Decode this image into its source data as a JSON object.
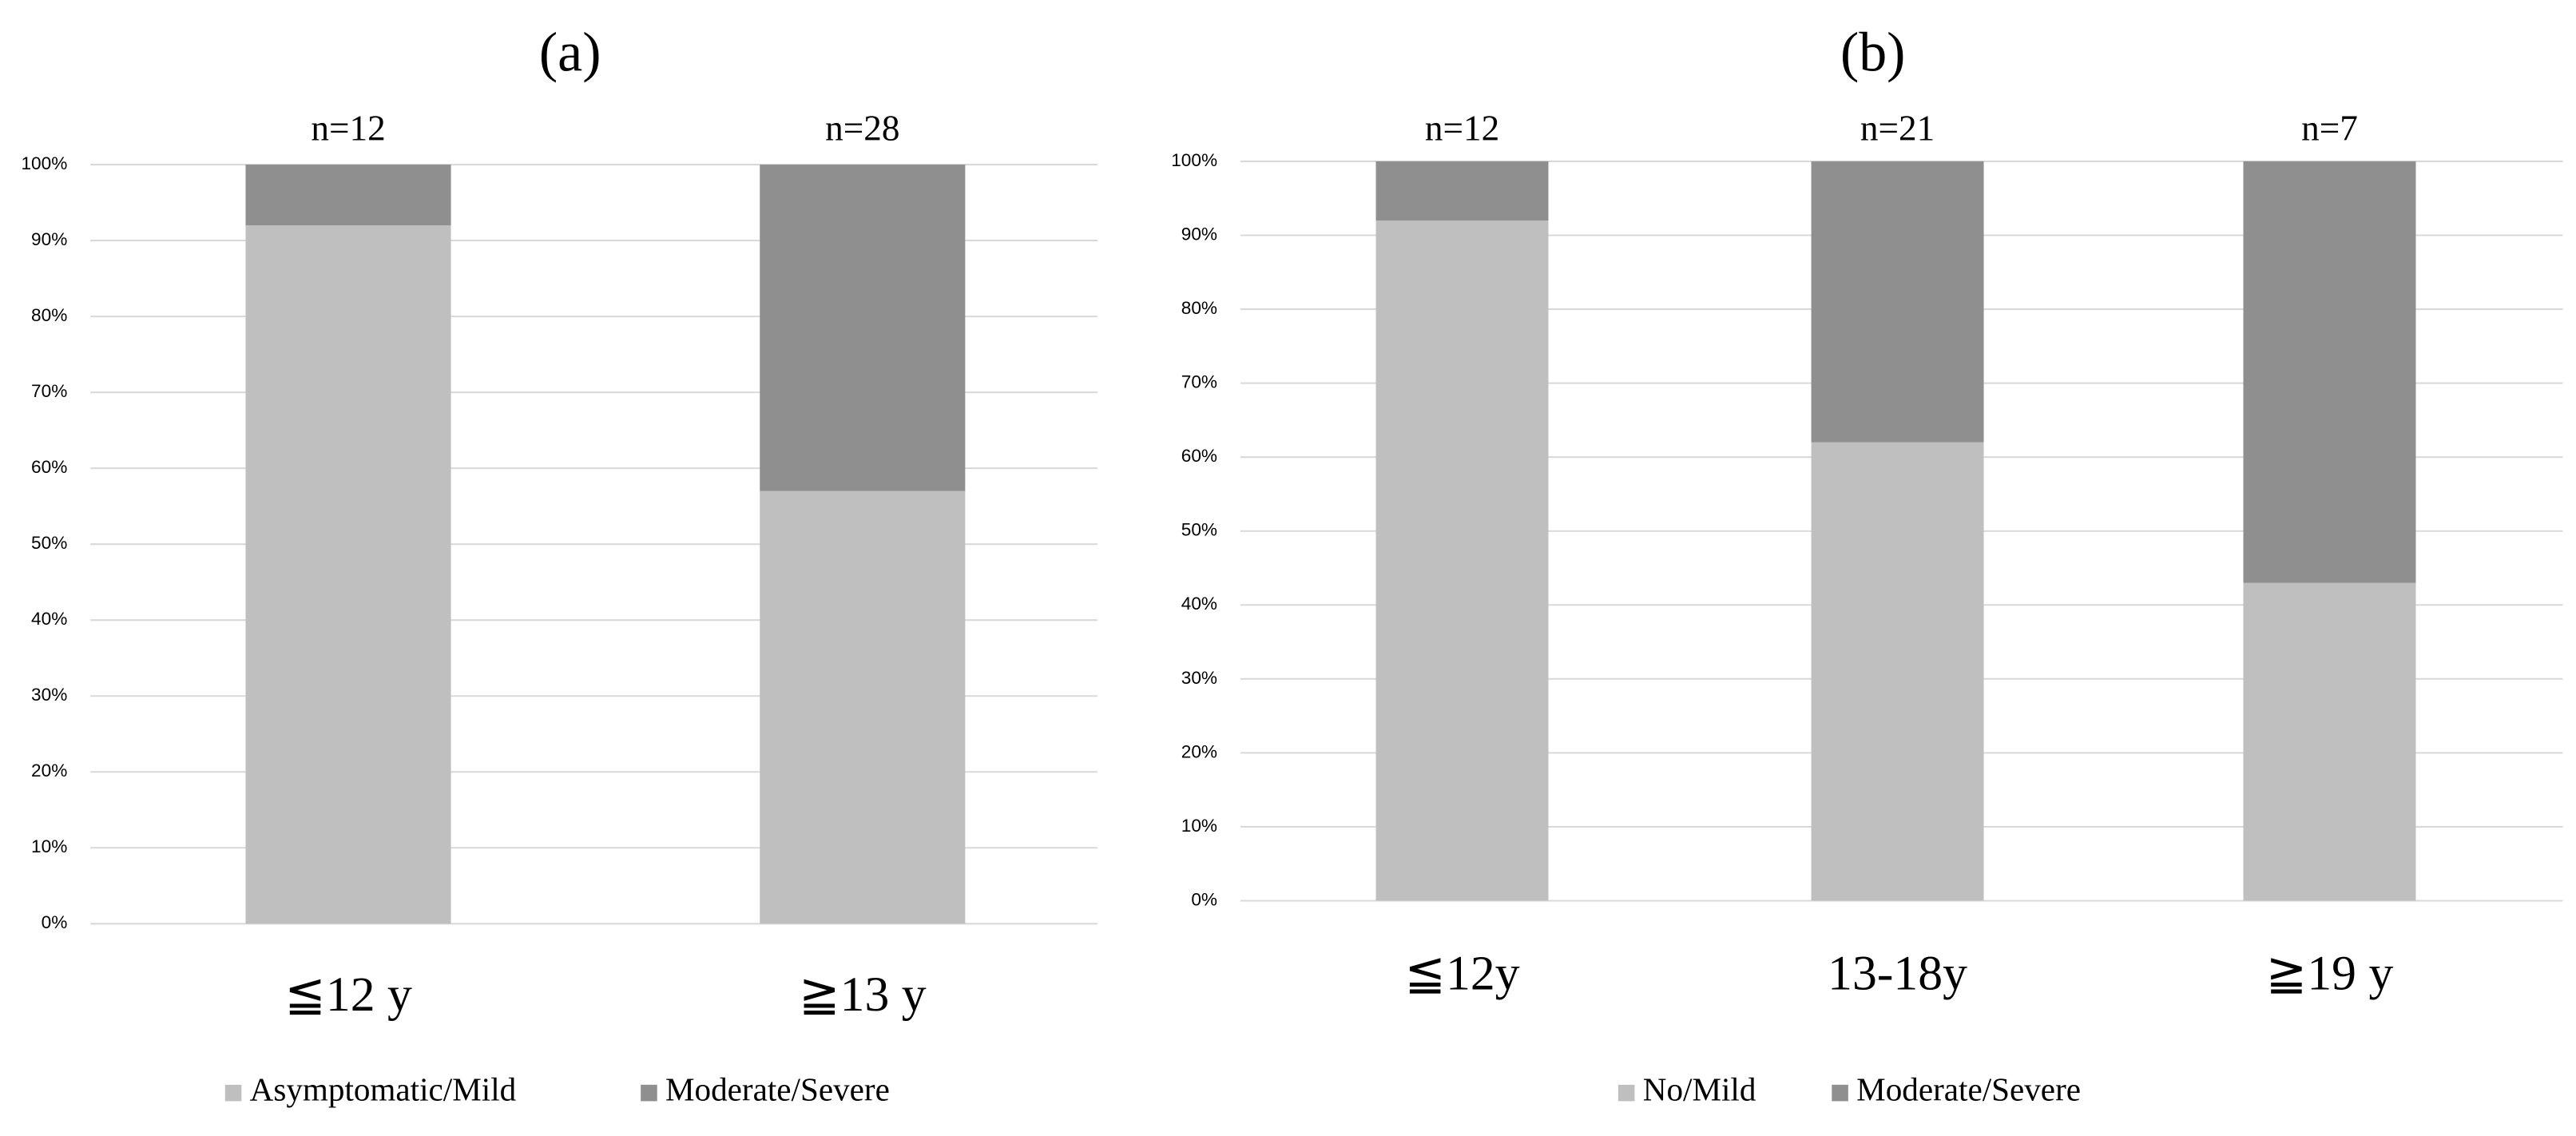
{
  "chart_data": [
    {
      "type": "stacked_bar",
      "title": "(a)",
      "categories": [
        "≦12 y",
        "≧13 y"
      ],
      "annotations": [
        "n=12",
        "n=28"
      ],
      "series": [
        {
          "name": "Asymptomatic/Mild",
          "color": "#bfbfbf",
          "values": [
            92,
            57
          ]
        },
        {
          "name": "Moderate/Severe",
          "color": "#8f8f8f",
          "values": [
            8,
            43
          ]
        }
      ],
      "ylim": [
        0,
        100
      ],
      "yticks": [
        {
          "value": 0,
          "label": "0%"
        },
        {
          "value": 10,
          "label": "10%"
        },
        {
          "value": 20,
          "label": "20%"
        },
        {
          "value": 30,
          "label": "30%"
        },
        {
          "value": 40,
          "label": "40%"
        },
        {
          "value": 50,
          "label": "50%"
        },
        {
          "value": 60,
          "label": "60%"
        },
        {
          "value": 70,
          "label": "70%"
        },
        {
          "value": 80,
          "label": "80%"
        },
        {
          "value": 90,
          "label": "90%"
        },
        {
          "value": 100,
          "label": "100%"
        }
      ],
      "grid": true,
      "legend": "bottom"
    },
    {
      "type": "stacked_bar",
      "title": "(b)",
      "categories": [
        "≦12y",
        "13-18y",
        "≧19 y"
      ],
      "annotations": [
        "n=12",
        "n=21",
        "n=7"
      ],
      "series": [
        {
          "name": "No/Mild",
          "color": "#bfbfbf",
          "values": [
            92,
            62,
            43
          ]
        },
        {
          "name": "Moderate/Severe",
          "color": "#8f8f8f",
          "values": [
            8,
            38,
            57
          ]
        }
      ],
      "ylim": [
        0,
        100
      ],
      "yticks": [
        {
          "value": 0,
          "label": "0%"
        },
        {
          "value": 10,
          "label": "10%"
        },
        {
          "value": 20,
          "label": "20%"
        },
        {
          "value": 30,
          "label": "30%"
        },
        {
          "value": 40,
          "label": "40%"
        },
        {
          "value": 50,
          "label": "50%"
        },
        {
          "value": 60,
          "label": "60%"
        },
        {
          "value": 70,
          "label": "70%"
        },
        {
          "value": 80,
          "label": "80%"
        },
        {
          "value": 90,
          "label": "90%"
        },
        {
          "value": 100,
          "label": "100%"
        }
      ],
      "grid": true,
      "legend": "bottom"
    }
  ]
}
